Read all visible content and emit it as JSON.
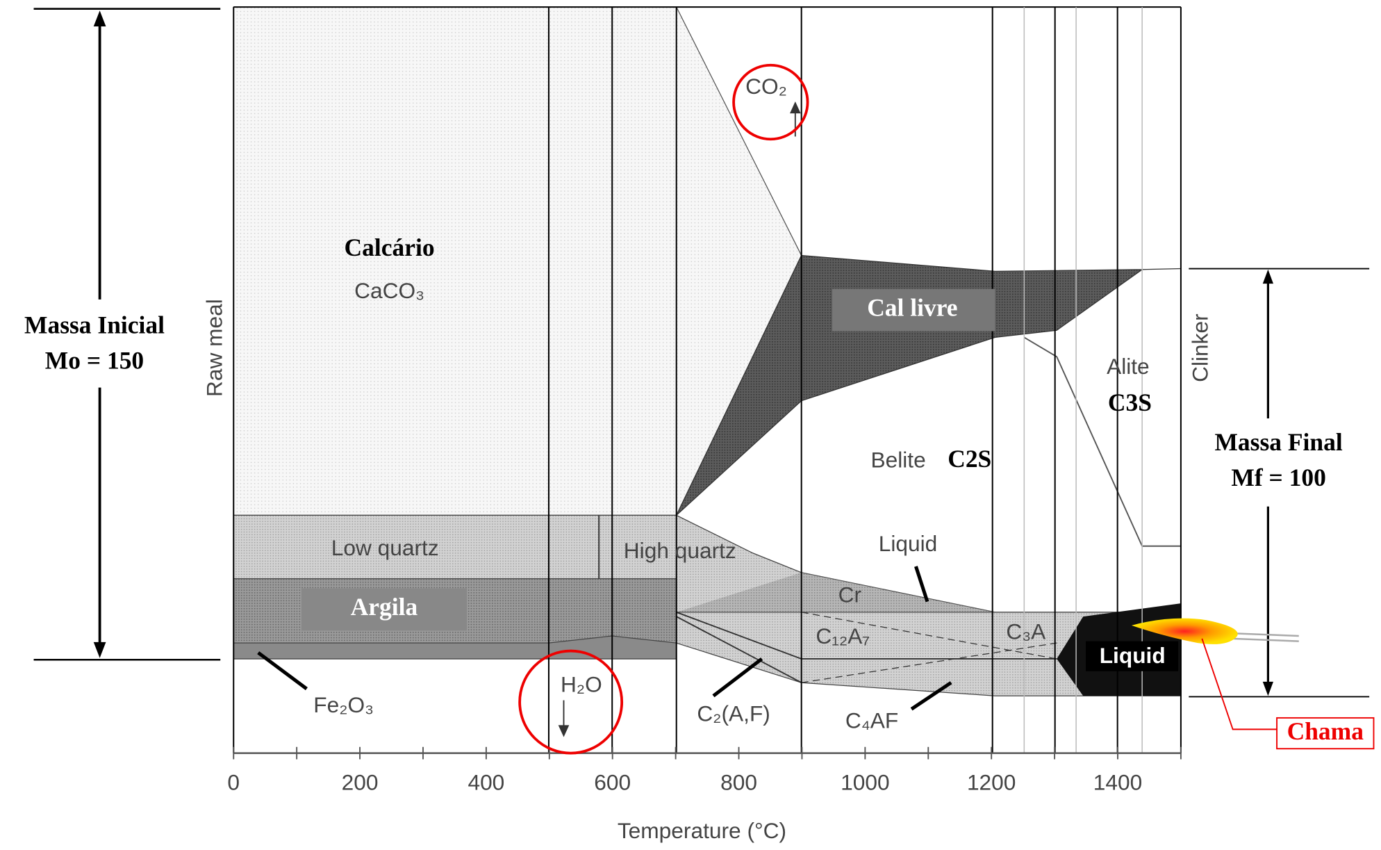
{
  "axis": {
    "title": "Temperature (°C)",
    "ticks": [
      0,
      200,
      400,
      600,
      800,
      1000,
      1200,
      1400
    ],
    "xlim": [
      0,
      1500
    ]
  },
  "labels": {
    "raw_meal": "Raw meal",
    "clinker": "Clinker",
    "calcario": "Calcário",
    "caco3": "CaCO₃",
    "co2": "CO₂",
    "cal_livre": "Cal livre",
    "low_quartz": "Low quartz",
    "high_quartz": "High quartz",
    "argila": "Argila",
    "cr": "Cr",
    "liquid": "Liquid",
    "liquid_black": "Liquid",
    "belite": "Belite",
    "c2s": "C2S",
    "alite": "Alite",
    "c3s": "C3S",
    "c12a7": "C₁₂A₇",
    "c3a": "C₃A",
    "c2af": "C₂(A,F)",
    "c4af": "C₄AF",
    "fe2o3": "Fe₂O₃",
    "h2o": "H₂O"
  },
  "massa_inicial": {
    "line1": "Massa Inicial",
    "line2": "Mo = 150"
  },
  "massa_final": {
    "line1": "Massa Final",
    "line2": "Mf = 100"
  },
  "chama": "Chama"
}
